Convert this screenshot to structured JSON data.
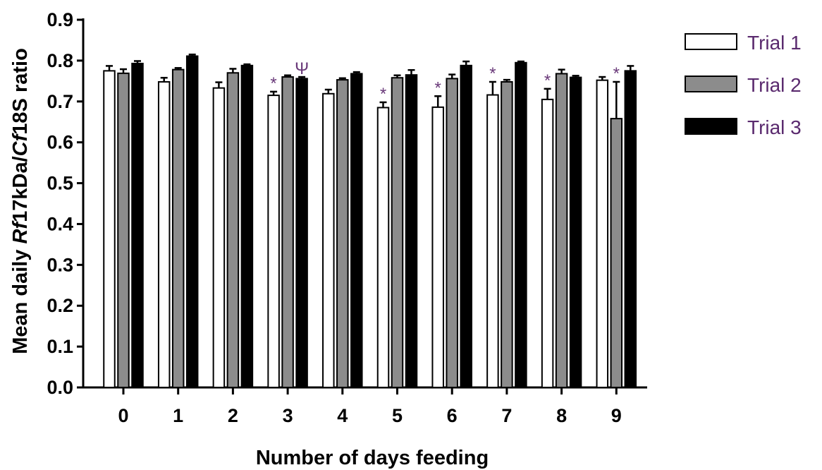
{
  "chart_data": {
    "type": "bar",
    "title": "",
    "xlabel": "Number of days feeding",
    "ylabel_parts": [
      {
        "text": "Mean daily ",
        "italic": false
      },
      {
        "text": "Rf",
        "italic": true
      },
      {
        "text": "17kDa/",
        "italic": false
      },
      {
        "text": "Cf",
        "italic": true
      },
      {
        "text": "18S ratio",
        "italic": false
      }
    ],
    "ylim": [
      0,
      0.9
    ],
    "yticks": [
      "0.0",
      "0.1",
      "0.2",
      "0.3",
      "0.4",
      "0.5",
      "0.6",
      "0.7",
      "0.8",
      "0.9"
    ],
    "categories": [
      "0",
      "1",
      "2",
      "3",
      "4",
      "5",
      "6",
      "7",
      "8",
      "9"
    ],
    "legend_position": "top-right",
    "series": [
      {
        "name": "Trial 1",
        "color": "#ffffff",
        "values": [
          0.775,
          0.748,
          0.733,
          0.715,
          0.719,
          0.685,
          0.686,
          0.716,
          0.705,
          0.752
        ],
        "errors": [
          0.012,
          0.01,
          0.014,
          0.009,
          0.01,
          0.013,
          0.027,
          0.032,
          0.026,
          0.008
        ]
      },
      {
        "name": "Trial 2",
        "color": "#8c8c8c",
        "values": [
          0.769,
          0.778,
          0.77,
          0.76,
          0.753,
          0.758,
          0.756,
          0.748,
          0.768,
          0.658
        ],
        "errors": [
          0.01,
          0.004,
          0.01,
          0.004,
          0.004,
          0.006,
          0.01,
          0.005,
          0.01,
          0.09
        ]
      },
      {
        "name": "Trial 3",
        "color": "#000000",
        "values": [
          0.793,
          0.811,
          0.788,
          0.756,
          0.768,
          0.765,
          0.788,
          0.795,
          0.759,
          0.775
        ],
        "errors": [
          0.006,
          0.004,
          0.003,
          0.004,
          0.004,
          0.012,
          0.01,
          0.003,
          0.004,
          0.012
        ]
      }
    ],
    "annotations": [
      {
        "category": "3",
        "series": 0,
        "text": "*"
      },
      {
        "category": "3",
        "series": 2,
        "text": "Ψ"
      },
      {
        "category": "5",
        "series": 0,
        "text": "*"
      },
      {
        "category": "6",
        "series": 0,
        "text": "*"
      },
      {
        "category": "7",
        "series": 0,
        "text": "*"
      },
      {
        "category": "8",
        "series": 0,
        "text": "*"
      },
      {
        "category": "9",
        "series": 1,
        "text": "*"
      }
    ]
  }
}
